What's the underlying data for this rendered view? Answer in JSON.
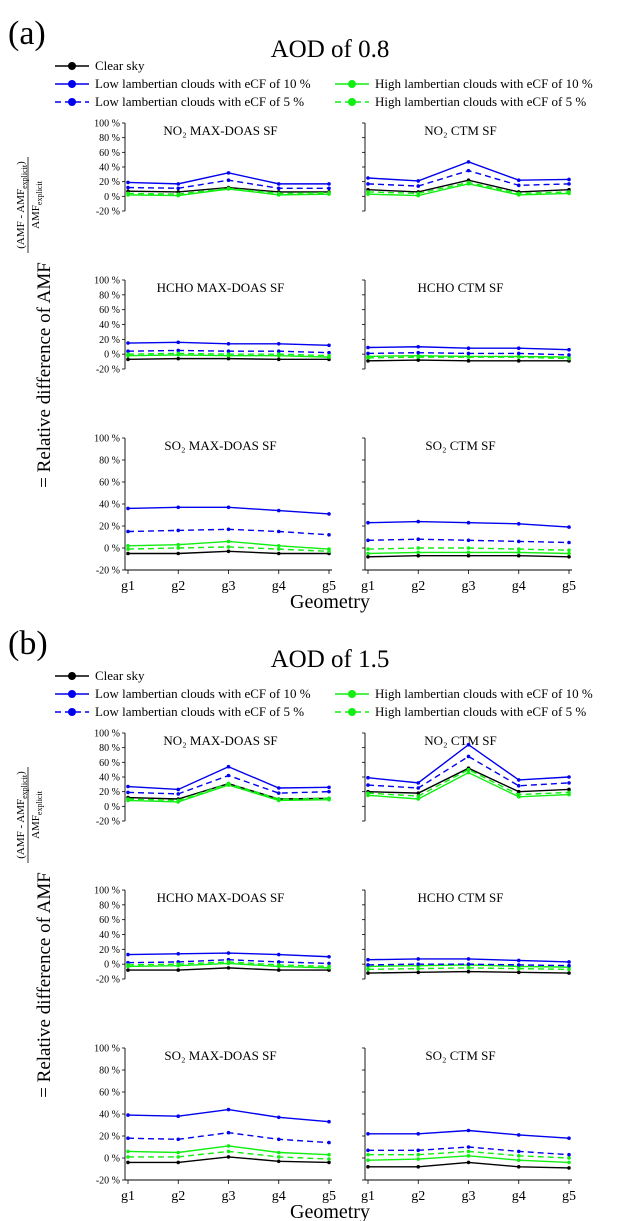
{
  "legend_entries": {
    "clear": "Clear sky",
    "low10": "Low lambertian clouds with eCF of 10 %",
    "high10": "High  lambertian clouds with eCF of 10 %",
    "low5": "Low  lambertian clouds with eCF of 5 %",
    "high5": "High lambertian clouds with eCF of 5 %"
  },
  "colors": {
    "clear": "#000000",
    "low": "#0000ee",
    "high": "#11ee11"
  },
  "ylabel_parts": {
    "num_lhs": "(AMF - AMF",
    "num_sub": "explicit",
    "num_rhs": ")",
    "den": "AMF",
    "den_sub": "explicit",
    "tail": "= Relative difference of AMF"
  },
  "xlabel": "Geometry",
  "chart_data": [
    {
      "type": "line",
      "panel_label": "(a)",
      "title": "AOD of 0.8",
      "categories": [
        "g1",
        "g2",
        "g3",
        "g4",
        "g5"
      ],
      "xlabel": "Geometry",
      "ylim": [
        -20,
        100
      ],
      "yticks": [
        "-20 %",
        "0 %",
        "20 %",
        "40 %",
        "60 %",
        "80 %",
        "100 %"
      ],
      "subplots": [
        {
          "title": "NO₂ MAX-DOAS SF",
          "series": [
            {
              "name": "Clear sky",
              "values": [
                7,
                6,
                12,
                6,
                6
              ]
            },
            {
              "name": "Low lambertian clouds with eCF of 10 %",
              "values": [
                19,
                17,
                32,
                17,
                17
              ]
            },
            {
              "name": "High  lambertian clouds with eCF of 10 %",
              "values": [
                2,
                1,
                10,
                2,
                3
              ]
            },
            {
              "name": "Low  lambertian clouds with eCF of 5 %",
              "values": [
                12,
                11,
                22,
                11,
                11
              ]
            },
            {
              "name": "High lambertian clouds with eCF of 5 %",
              "values": [
                4,
                3,
                11,
                4,
                5
              ]
            }
          ]
        },
        {
          "title": "NO₂ CTM SF",
          "series": [
            {
              "name": "Clear sky",
              "values": [
                9,
                6,
                22,
                6,
                9
              ]
            },
            {
              "name": "Low lambertian clouds with eCF of 10 %",
              "values": [
                25,
                21,
                47,
                22,
                23
              ]
            },
            {
              "name": "High  lambertian clouds with eCF of 10 %",
              "values": [
                3,
                1,
                17,
                2,
                4
              ]
            },
            {
              "name": "Low  lambertian clouds with eCF of 5 %",
              "values": [
                17,
                14,
                35,
                15,
                17
              ]
            },
            {
              "name": "High lambertian clouds with eCF of 5 %",
              "values": [
                6,
                4,
                19,
                4,
                6
              ]
            }
          ]
        },
        {
          "title": "HCHO MAX-DOAS SF",
          "series": [
            {
              "name": "Clear sky",
              "values": [
                -7,
                -6,
                -6,
                -7,
                -7
              ]
            },
            {
              "name": "Low lambertian clouds with eCF of 10 %",
              "values": [
                15,
                16,
                14,
                14,
                12
              ]
            },
            {
              "name": "High  lambertian clouds with eCF of 10 %",
              "values": [
                -2,
                -1,
                -2,
                -2,
                -4
              ]
            },
            {
              "name": "Low  lambertian clouds with eCF of 5 %",
              "values": [
                4,
                5,
                4,
                4,
                2
              ]
            },
            {
              "name": "High lambertian clouds with eCF of 5 %",
              "values": [
                0,
                1,
                0,
                0,
                -2
              ]
            }
          ]
        },
        {
          "title": "HCHO CTM SF",
          "series": [
            {
              "name": "Clear sky",
              "values": [
                -9,
                -8,
                -9,
                -9,
                -9
              ]
            },
            {
              "name": "Low lambertian clouds with eCF of 10 %",
              "values": [
                9,
                10,
                8,
                8,
                6
              ]
            },
            {
              "name": "High  lambertian clouds with eCF of 10 %",
              "values": [
                -3,
                -2,
                -3,
                -3,
                -4
              ]
            },
            {
              "name": "Low  lambertian clouds with eCF of 5 %",
              "values": [
                1,
                2,
                1,
                1,
                -1
              ]
            },
            {
              "name": "High lambertian clouds with eCF of 5 %",
              "values": [
                -5,
                -4,
                -4,
                -4,
                -6
              ]
            }
          ]
        },
        {
          "title": "SO₂ MAX-DOAS SF",
          "series": [
            {
              "name": "Clear sky",
              "values": [
                -5,
                -5,
                -3,
                -5,
                -5
              ]
            },
            {
              "name": "Low lambertian clouds with eCF of 10 %",
              "values": [
                36,
                37,
                37,
                34,
                31
              ]
            },
            {
              "name": "High  lambertian clouds with eCF of 10 %",
              "values": [
                2,
                3,
                6,
                2,
                -1
              ]
            },
            {
              "name": "Low  lambertian clouds with eCF of 5 %",
              "values": [
                15,
                16,
                17,
                15,
                12
              ]
            },
            {
              "name": "High lambertian clouds with eCF of 5 %",
              "values": [
                -1,
                0,
                1,
                -1,
                -3
              ]
            }
          ]
        },
        {
          "title": "SO₂ CTM SF",
          "series": [
            {
              "name": "Clear sky",
              "values": [
                -8,
                -7,
                -7,
                -7,
                -8
              ]
            },
            {
              "name": "Low lambertian clouds with eCF of 10 %",
              "values": [
                23,
                24,
                23,
                22,
                19
              ]
            },
            {
              "name": "High  lambertian clouds with eCF of 10 %",
              "values": [
                -5,
                -4,
                -4,
                -4,
                -5
              ]
            },
            {
              "name": "Low  lambertian clouds with eCF of 5 %",
              "values": [
                7,
                8,
                7,
                6,
                5
              ]
            },
            {
              "name": "High lambertian clouds with eCF of 5 %",
              "values": [
                -1,
                0,
                0,
                -1,
                -2
              ]
            }
          ]
        }
      ]
    },
    {
      "type": "line",
      "panel_label": "(b)",
      "title": "AOD of 1.5",
      "categories": [
        "g1",
        "g2",
        "g3",
        "g4",
        "g5"
      ],
      "xlabel": "Geometry",
      "ylim": [
        -20,
        100
      ],
      "yticks": [
        "-20 %",
        "0 %",
        "20 %",
        "40 %",
        "60 %",
        "80 %",
        "100 %"
      ],
      "subplots": [
        {
          "title": "NO₂ MAX-DOAS SF",
          "series": [
            {
              "name": "Clear sky",
              "values": [
                12,
                10,
                31,
                10,
                11
              ]
            },
            {
              "name": "Low lambertian clouds with eCF of 10 %",
              "values": [
                27,
                23,
                54,
                25,
                26
              ]
            },
            {
              "name": "High  lambertian clouds with eCF of 10 %",
              "values": [
                8,
                6,
                29,
                8,
                9
              ]
            },
            {
              "name": "Low  lambertian clouds with eCF of 5 %",
              "values": [
                19,
                17,
                42,
                18,
                20
              ]
            },
            {
              "name": "High lambertian clouds with eCF of 5 %",
              "values": [
                10,
                8,
                31,
                10,
                11
              ]
            }
          ]
        },
        {
          "title": "NO₂ CTM SF",
          "series": [
            {
              "name": "Clear sky",
              "values": [
                20,
                18,
                52,
                20,
                23
              ]
            },
            {
              "name": "Low lambertian clouds with eCF of 10 %",
              "values": [
                39,
                32,
                84,
                36,
                40
              ]
            },
            {
              "name": "High  lambertian clouds with eCF of 10 %",
              "values": [
                15,
                10,
                46,
                13,
                16
              ]
            },
            {
              "name": "Low  lambertian clouds with eCF of 5 %",
              "values": [
                29,
                25,
                68,
                28,
                32
              ]
            },
            {
              "name": "High lambertian clouds with eCF of 5 %",
              "values": [
                18,
                14,
                50,
                16,
                19
              ]
            }
          ]
        },
        {
          "title": "HCHO MAX-DOAS SF",
          "series": [
            {
              "name": "Clear sky",
              "values": [
                -8,
                -8,
                -5,
                -8,
                -8
              ]
            },
            {
              "name": "Low lambertian clouds with eCF of 10 %",
              "values": [
                13,
                14,
                15,
                13,
                10
              ]
            },
            {
              "name": "High  lambertian clouds with eCF of 10 %",
              "values": [
                -3,
                -2,
                1,
                -3,
                -5
              ]
            },
            {
              "name": "Low  lambertian clouds with eCF of 5 %",
              "values": [
                2,
                3,
                6,
                3,
                1
              ]
            },
            {
              "name": "High lambertian clouds with eCF of 5 %",
              "values": [
                -1,
                0,
                3,
                -1,
                -3
              ]
            }
          ]
        },
        {
          "title": "HCHO CTM SF",
          "series": [
            {
              "name": "Clear sky",
              "values": [
                -12,
                -11,
                -10,
                -11,
                -12
              ]
            },
            {
              "name": "Low lambertian clouds with eCF of 10 %",
              "values": [
                6,
                7,
                7,
                5,
                3
              ]
            },
            {
              "name": "High  lambertian clouds with eCF of 10 %",
              "values": [
                -3,
                -2,
                -1,
                -3,
                -4
              ]
            },
            {
              "name": "Low  lambertian clouds with eCF of 5 %",
              "values": [
                -1,
                0,
                0,
                -1,
                -2
              ]
            },
            {
              "name": "High lambertian clouds with eCF of 5 %",
              "values": [
                -7,
                -6,
                -5,
                -6,
                -7
              ]
            }
          ]
        },
        {
          "title": "SO₂ MAX-DOAS SF",
          "series": [
            {
              "name": "Clear sky",
              "values": [
                -4,
                -4,
                1,
                -3,
                -4
              ]
            },
            {
              "name": "Low lambertian clouds with eCF of 10 %",
              "values": [
                39,
                38,
                44,
                37,
                33
              ]
            },
            {
              "name": "High  lambertian clouds with eCF of 10 %",
              "values": [
                6,
                5,
                11,
                5,
                3
              ]
            },
            {
              "name": "Low  lambertian clouds with eCF of 5 %",
              "values": [
                18,
                17,
                23,
                17,
                14
              ]
            },
            {
              "name": "High lambertian clouds with eCF of 5 %",
              "values": [
                1,
                1,
                6,
                1,
                -1
              ]
            }
          ]
        },
        {
          "title": "SO₂ CTM SF",
          "series": [
            {
              "name": "Clear sky",
              "values": [
                -8,
                -8,
                -4,
                -8,
                -9
              ]
            },
            {
              "name": "Low lambertian clouds with eCF of 10 %",
              "values": [
                22,
                22,
                25,
                21,
                18
              ]
            },
            {
              "name": "High  lambertian clouds with eCF of 10 %",
              "values": [
                -2,
                -1,
                2,
                -2,
                -4
              ]
            },
            {
              "name": "Low  lambertian clouds with eCF of 5 %",
              "values": [
                7,
                7,
                10,
                6,
                3
              ]
            },
            {
              "name": "High lambertian clouds with eCF of 5 %",
              "values": [
                3,
                3,
                6,
                2,
                0
              ]
            }
          ]
        }
      ]
    }
  ]
}
